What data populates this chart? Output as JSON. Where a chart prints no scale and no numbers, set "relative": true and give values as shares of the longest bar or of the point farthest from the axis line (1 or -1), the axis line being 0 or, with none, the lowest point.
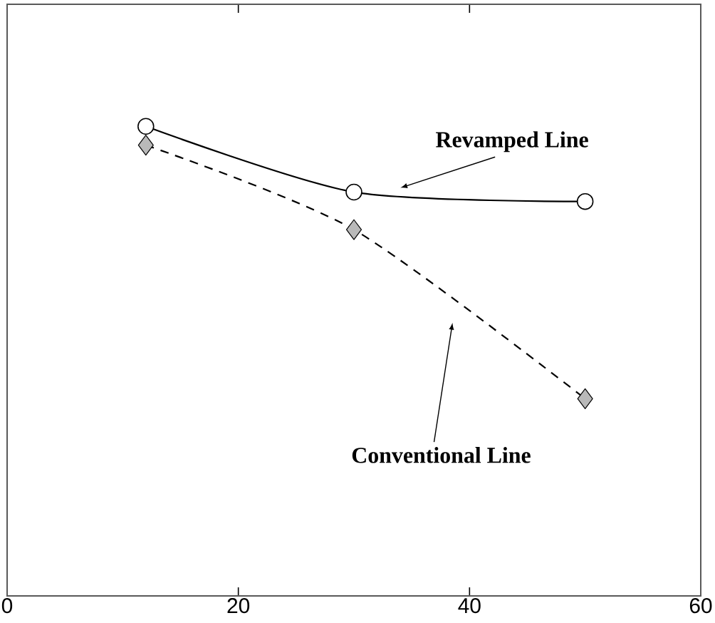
{
  "chart_data": {
    "type": "line",
    "relative": true,
    "xlim": [
      0,
      60
    ],
    "xticks": [
      0,
      20,
      40,
      60
    ],
    "grid": false,
    "series": [
      {
        "name": "Revamped Line",
        "color": "#000000",
        "marker": "circle",
        "line_style": "solid",
        "x": [
          12,
          30,
          50
        ],
        "values": [
          1,
          0.86,
          0.84
        ]
      },
      {
        "name": "Conventional Line",
        "color": "#000000",
        "marker": "diamond",
        "line_style": "dashed",
        "x": [
          12,
          30,
          50
        ],
        "values": [
          0.96,
          0.78,
          0.42
        ]
      }
    ]
  }
}
